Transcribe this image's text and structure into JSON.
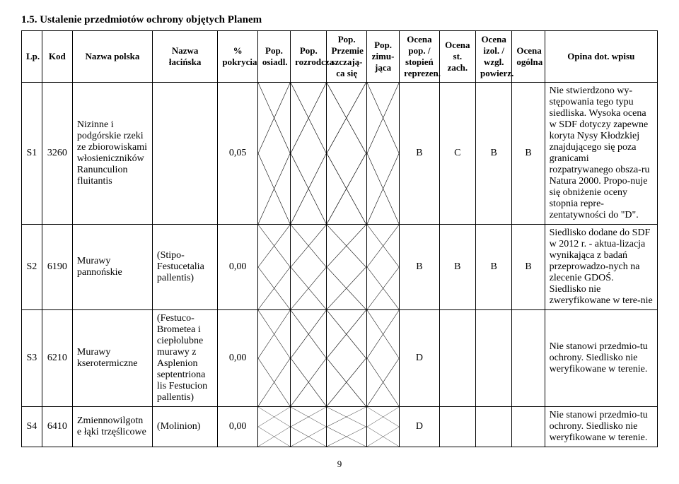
{
  "section_title": "1.5.   Ustalenie przedmiotów ochrony objętych Planem",
  "headers": {
    "lp": "Lp.",
    "kod": "Kod",
    "nazwa_polska": "Nazwa polska",
    "nazwa_lacinska": "Nazwa łacińska",
    "pokrycia": "% pokrycia",
    "pop_osiadl": "Pop. osiadl.",
    "pop_rozrodcza": "Pop. rozrodcza",
    "pop_przemie": "Pop. Przemie szczają-ca się",
    "pop_zimujaca": "Pop. zimu-jąca",
    "ocena_pop": "Ocena pop. / stopień reprezen.",
    "ocena_st_zach": "Ocena st. zach.",
    "ocena_izol": "Ocena izol. / wzgl. powierz.",
    "ocena_ogolna": "Ocena ogólna",
    "opina": "Opina dot. wpisu"
  },
  "rows": [
    {
      "lp": "S1",
      "kod": "3260",
      "nazwa_polska": "Nizinne i podgórskie rzeki ze zbiorowiskami włosieniczników Ranunculion fluitantis",
      "nazwa_lacinska": "",
      "pokrycia": "0,05",
      "ocena_pop": "B",
      "ocena_st_zach": "C",
      "ocena_izol": "B",
      "ocena_ogolna": "B",
      "opina": "Nie stwierdzono wy-stępowania tego typu siedliska. Wysoka ocena w SDF dotyczy zapewne koryta Nysy Kłodzkiej znajdującego się poza granicami rozpatrywanego obsza-ru Natura 2000. Propo-nuje się obniżenie oceny stopnia repre-zentatywności do \"D\"."
    },
    {
      "lp": "S2",
      "kod": "6190",
      "nazwa_polska": "Murawy pannońskie",
      "nazwa_lacinska": "(Stipo-Festucetalia pallentis)",
      "pokrycia": "0,00",
      "ocena_pop": "B",
      "ocena_st_zach": "B",
      "ocena_izol": "B",
      "ocena_ogolna": "B",
      "opina": "Siedlisko dodane do SDF w 2012 r. - aktua-lizacja wynikająca z badań przeprowadzo-nych na zlecenie GDOŚ. Siedlisko nie zweryfikowane w tere-nie"
    },
    {
      "lp": "S3",
      "kod": "6210",
      "nazwa_polska": "Murawy kserotermiczne",
      "nazwa_lacinska": "(Festuco-Brometea i ciepłolubne murawy z Asplenion septentriona lis Festucion pallentis)",
      "pokrycia": "0,00",
      "ocena_pop": "D",
      "ocena_st_zach": "",
      "ocena_izol": "",
      "ocena_ogolna": "",
      "opina": "Nie stanowi przedmio-tu ochrony. Siedlisko nie weryfikowane w terenie."
    },
    {
      "lp": "S4",
      "kod": "6410",
      "nazwa_polska": "Zmiennowilgotn e łąki trzęślicowe",
      "nazwa_lacinska": "(Molinion)",
      "pokrycia": "0,00",
      "ocena_pop": "D",
      "ocena_st_zach": "",
      "ocena_izol": "",
      "ocena_ogolna": "",
      "opina": "Nie stanowi przedmio-tu ochrony. Siedlisko nie weryfikowane w terenie."
    }
  ],
  "page_number": "9",
  "colwidths": {
    "lp": 28,
    "kod": 42,
    "nazwa_polska": 110,
    "nazwa_lacinska": 90,
    "pokrycia": 55,
    "pop_osiadl": 45,
    "pop_rozrodcza": 50,
    "pop_przemie": 55,
    "pop_zimujaca": 45,
    "ocena_pop": 55,
    "ocena_st_zach": 50,
    "ocena_izol": 50,
    "ocena_ogolna": 45,
    "opina": 155
  },
  "hatch_color": "#000000"
}
